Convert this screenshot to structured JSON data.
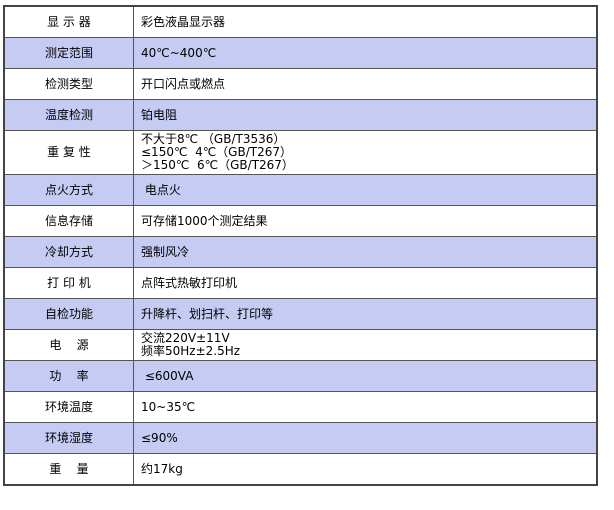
{
  "rows": [
    {
      "label": "显 示 器",
      "value": [
        "彩色液晶显示器"
      ]
    },
    {
      "label": "测定范围",
      "value": [
        "40℃~400℃"
      ]
    },
    {
      "label": "检测类型",
      "value": [
        "开口闪点或燃点"
      ]
    },
    {
      "label": "温度检测",
      "value": [
        "铂电阻"
      ]
    },
    {
      "label": "重 复 性",
      "value": [
        "不大于8℃ （GB/T3536）",
        "≤150℃  4℃（GB/T267）",
        "＞150℃  6℃（GB/T267）"
      ]
    },
    {
      "label": "点火方式",
      "value": [
        " 电点火"
      ]
    },
    {
      "label": "信息存储",
      "value": [
        "可存储1000个测定结果"
      ]
    },
    {
      "label": "冷却方式",
      "value": [
        "强制风冷"
      ]
    },
    {
      "label": "打 印 机",
      "value": [
        "点阵式热敏打印机"
      ]
    },
    {
      "label": "自检功能",
      "value": [
        "升降杆、划扫杆、打印等"
      ]
    },
    {
      "label": "电    源",
      "value": [
        "交流220V±11V",
        "频率50Hz±2.5Hz"
      ]
    },
    {
      "label": "功    率",
      "value": [
        " ≤600VA"
      ]
    },
    {
      "label": "环境温度",
      "value": [
        "10~35℃"
      ]
    },
    {
      "label": "环境湿度",
      "value": [
        "≤90%"
      ]
    },
    {
      "label": "重    量",
      "value": [
        "约17kg"
      ]
    }
  ],
  "colors": {
    "alt_row": "#c5cbf2",
    "border": "#444444"
  }
}
